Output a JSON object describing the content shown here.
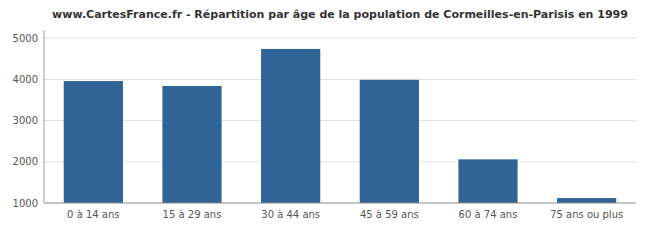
{
  "chart_data": {
    "type": "bar",
    "title": "www.CartesFrance.fr - Répartition par âge de la population de Cormeilles-en-Parisis en 1999",
    "categories": [
      "0 à 14 ans",
      "15 à 29 ans",
      "30 à 44 ans",
      "45 à 59 ans",
      "60 à 74 ans",
      "75 ans ou plus"
    ],
    "values": [
      3960,
      3840,
      4740,
      3990,
      2060,
      1120
    ],
    "color": "#2e6496",
    "ylim": [
      1000,
      5200
    ],
    "yticks": [
      1000,
      2000,
      3000,
      4000,
      5000
    ],
    "grid": true
  }
}
